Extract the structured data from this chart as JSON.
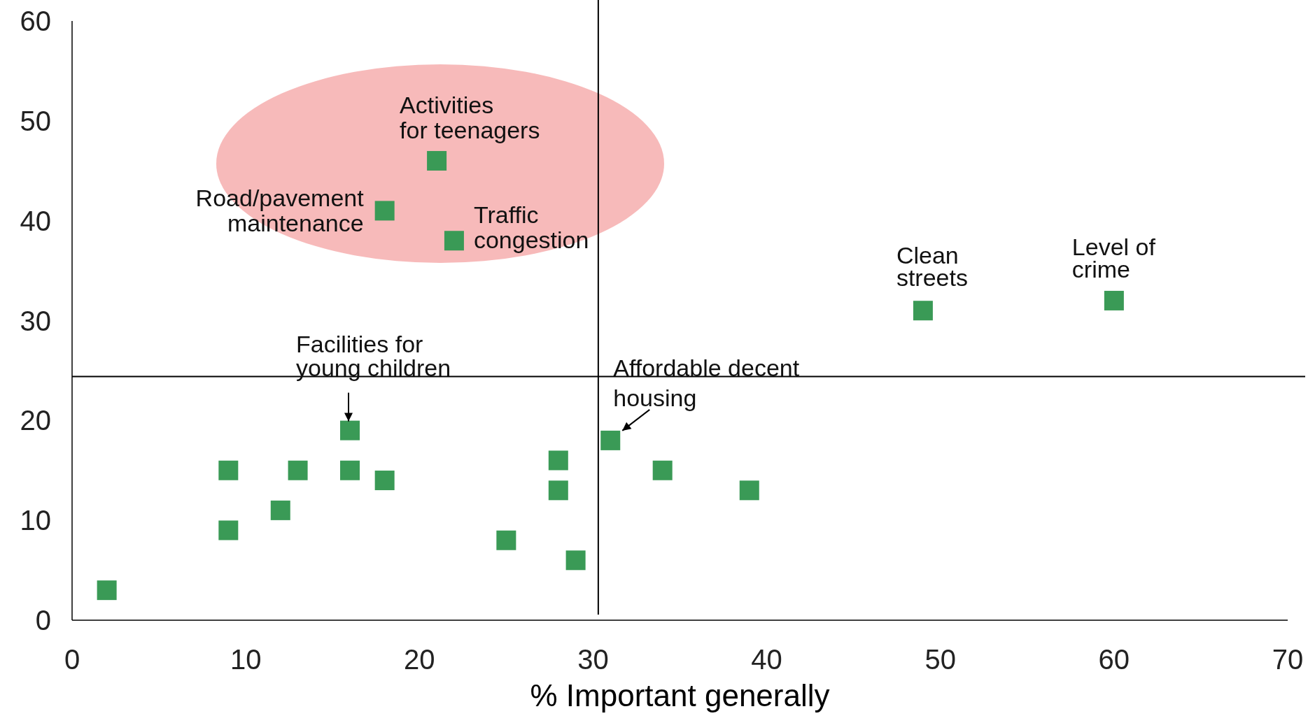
{
  "chart_data": {
    "type": "scatter",
    "xlabel": "% Important generally",
    "x": [
      2,
      9,
      9,
      12,
      13,
      16,
      16,
      18,
      21,
      18,
      22,
      25,
      28,
      28,
      29,
      31,
      34,
      39,
      49,
      60
    ],
    "series": [
      {
        "color": "#3a9a56",
        "values": [
          3,
          15,
          9,
          11,
          15,
          19,
          15,
          14,
          46,
          41,
          38,
          8,
          16,
          13,
          6,
          18,
          15,
          13,
          31,
          32
        ]
      }
    ],
    "xlim": [
      0,
      70
    ],
    "xticks": [
      0,
      10,
      20,
      30,
      40,
      50,
      60,
      70
    ],
    "ylim": [
      0,
      60
    ],
    "yticks": [
      0,
      10,
      20,
      30,
      40,
      50,
      60
    ],
    "grid": false,
    "marker": "square",
    "ref_lines": [
      {
        "axis": "x",
        "value": 30.3
      },
      {
        "axis": "y",
        "value": 24.4
      }
    ],
    "annotations": [
      {
        "text": "Road/pavement\nmaintenance",
        "x": 18,
        "y": 41
      },
      {
        "text": "Activities\nfor teenagers",
        "x": 21,
        "y": 46
      },
      {
        "text": "Traffic\ncongestion",
        "x": 22,
        "y": 38
      },
      {
        "text": "Clean\nstreets",
        "x": 49,
        "y": 31
      },
      {
        "text": "Level of\ncrime",
        "x": 60,
        "y": 32
      },
      {
        "text": "Facilities for\nyoung children",
        "x": 16,
        "y": 19
      },
      {
        "text": "Affordable decent\nhousing",
        "x": 31,
        "y": 18
      }
    ]
  }
}
